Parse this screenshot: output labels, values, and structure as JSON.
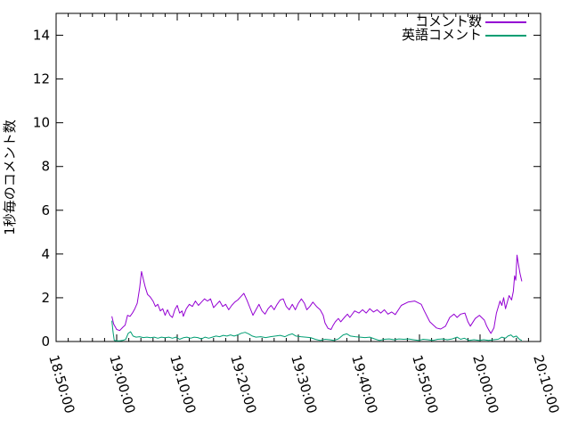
{
  "chart_data": {
    "type": "line",
    "title": "",
    "xlabel": "",
    "ylabel": "1秒毎のコメント数",
    "grid": false,
    "legend_position": "top-right-inside",
    "x_axis": {
      "tick_labels": [
        "18:50:00",
        "19:00:00",
        "19:10:00",
        "19:20:00",
        "19:30:00",
        "19:40:00",
        "19:50:00",
        "20:00:00",
        "20:10:00"
      ],
      "major_tick_interval_minutes": 10,
      "minor_tick_interval_minutes": 2,
      "range_minutes": [
        0,
        80
      ]
    },
    "y_axis": {
      "tick_labels": [
        "0",
        "2",
        "4",
        "6",
        "8",
        "10",
        "12",
        "14"
      ],
      "tick_step": 2,
      "range": [
        0,
        15
      ]
    },
    "series": [
      {
        "name": "コメント数",
        "color": "#9400d3",
        "points": [
          [
            9.2,
            1.15
          ],
          [
            9.5,
            0.8
          ],
          [
            10.0,
            0.55
          ],
          [
            10.5,
            0.5
          ],
          [
            11.0,
            0.65
          ],
          [
            11.4,
            0.75
          ],
          [
            11.8,
            1.2
          ],
          [
            12.2,
            1.15
          ],
          [
            12.6,
            1.3
          ],
          [
            13.0,
            1.5
          ],
          [
            13.4,
            1.75
          ],
          [
            13.8,
            2.45
          ],
          [
            14.1,
            3.2
          ],
          [
            14.4,
            2.85
          ],
          [
            14.7,
            2.5
          ],
          [
            15.1,
            2.15
          ],
          [
            15.5,
            2.05
          ],
          [
            16.0,
            1.85
          ],
          [
            16.4,
            1.6
          ],
          [
            16.8,
            1.7
          ],
          [
            17.2,
            1.4
          ],
          [
            17.6,
            1.5
          ],
          [
            18.0,
            1.2
          ],
          [
            18.4,
            1.45
          ],
          [
            18.8,
            1.2
          ],
          [
            19.2,
            1.1
          ],
          [
            19.6,
            1.45
          ],
          [
            20.0,
            1.65
          ],
          [
            20.4,
            1.3
          ],
          [
            20.8,
            1.4
          ],
          [
            21.0,
            1.15
          ],
          [
            21.5,
            1.5
          ],
          [
            22.0,
            1.7
          ],
          [
            22.5,
            1.6
          ],
          [
            23.0,
            1.85
          ],
          [
            23.5,
            1.65
          ],
          [
            24.0,
            1.8
          ],
          [
            24.5,
            1.95
          ],
          [
            25.0,
            1.85
          ],
          [
            25.5,
            1.95
          ],
          [
            26.0,
            1.55
          ],
          [
            26.5,
            1.7
          ],
          [
            27.0,
            1.85
          ],
          [
            27.5,
            1.6
          ],
          [
            28.0,
            1.7
          ],
          [
            28.5,
            1.45
          ],
          [
            29.0,
            1.65
          ],
          [
            29.5,
            1.8
          ],
          [
            30.0,
            1.9
          ],
          [
            30.5,
            2.05
          ],
          [
            31.0,
            2.2
          ],
          [
            31.5,
            1.9
          ],
          [
            32.0,
            1.55
          ],
          [
            32.5,
            1.2
          ],
          [
            33.0,
            1.45
          ],
          [
            33.5,
            1.7
          ],
          [
            34.0,
            1.4
          ],
          [
            34.5,
            1.25
          ],
          [
            35.0,
            1.5
          ],
          [
            35.5,
            1.65
          ],
          [
            36.0,
            1.45
          ],
          [
            36.5,
            1.7
          ],
          [
            37.0,
            1.9
          ],
          [
            37.5,
            1.95
          ],
          [
            38.0,
            1.6
          ],
          [
            38.5,
            1.45
          ],
          [
            39.0,
            1.7
          ],
          [
            39.5,
            1.45
          ],
          [
            40.0,
            1.75
          ],
          [
            40.5,
            1.95
          ],
          [
            41.0,
            1.75
          ],
          [
            41.4,
            1.45
          ],
          [
            41.9,
            1.6
          ],
          [
            42.4,
            1.8
          ],
          [
            43.0,
            1.6
          ],
          [
            43.6,
            1.45
          ],
          [
            44.1,
            1.2
          ],
          [
            44.4,
            0.85
          ],
          [
            44.9,
            0.6
          ],
          [
            45.4,
            0.55
          ],
          [
            45.7,
            0.72
          ],
          [
            46.1,
            0.9
          ],
          [
            46.6,
            1.05
          ],
          [
            47.0,
            0.9
          ],
          [
            47.6,
            1.1
          ],
          [
            48.1,
            1.25
          ],
          [
            48.5,
            1.1
          ],
          [
            49.3,
            1.4
          ],
          [
            50.0,
            1.3
          ],
          [
            50.6,
            1.45
          ],
          [
            51.2,
            1.3
          ],
          [
            51.8,
            1.5
          ],
          [
            52.4,
            1.35
          ],
          [
            53.0,
            1.45
          ],
          [
            53.6,
            1.3
          ],
          [
            54.2,
            1.45
          ],
          [
            54.8,
            1.25
          ],
          [
            55.4,
            1.35
          ],
          [
            56.0,
            1.23
          ],
          [
            57.0,
            1.65
          ],
          [
            58.1,
            1.8
          ],
          [
            59.2,
            1.85
          ],
          [
            60.3,
            1.7
          ],
          [
            60.8,
            1.4
          ],
          [
            61.7,
            0.9
          ],
          [
            62.8,
            0.62
          ],
          [
            63.5,
            0.57
          ],
          [
            64.3,
            0.7
          ],
          [
            65.0,
            1.1
          ],
          [
            65.7,
            1.25
          ],
          [
            66.2,
            1.1
          ],
          [
            66.8,
            1.25
          ],
          [
            67.5,
            1.3
          ],
          [
            68.0,
            0.9
          ],
          [
            68.4,
            0.7
          ],
          [
            69.2,
            1.05
          ],
          [
            69.9,
            1.2
          ],
          [
            70.7,
            0.98
          ],
          [
            71.1,
            0.7
          ],
          [
            71.5,
            0.5
          ],
          [
            71.8,
            0.37
          ],
          [
            72.3,
            0.62
          ],
          [
            72.7,
            1.3
          ],
          [
            73.3,
            1.85
          ],
          [
            73.6,
            1.65
          ],
          [
            73.9,
            2.0
          ],
          [
            74.2,
            1.5
          ],
          [
            74.8,
            2.1
          ],
          [
            75.2,
            1.9
          ],
          [
            75.5,
            2.3
          ],
          [
            75.7,
            3.0
          ],
          [
            75.9,
            2.8
          ],
          [
            76.1,
            3.95
          ],
          [
            76.3,
            3.6
          ],
          [
            76.6,
            3.1
          ],
          [
            76.9,
            2.75
          ]
        ]
      },
      {
        "name": "英語コメント",
        "color": "#009e73",
        "points": [
          [
            9.2,
            0.95
          ],
          [
            9.4,
            0.45
          ],
          [
            9.6,
            0.05
          ],
          [
            10.0,
            0.03
          ],
          [
            10.5,
            0.03
          ],
          [
            11.0,
            0.05
          ],
          [
            11.5,
            0.1
          ],
          [
            11.9,
            0.37
          ],
          [
            12.3,
            0.45
          ],
          [
            12.7,
            0.25
          ],
          [
            13.2,
            0.2
          ],
          [
            13.8,
            0.22
          ],
          [
            14.4,
            0.18
          ],
          [
            15.0,
            0.2
          ],
          [
            15.6,
            0.17
          ],
          [
            16.2,
            0.2
          ],
          [
            16.8,
            0.15
          ],
          [
            17.4,
            0.2
          ],
          [
            18.0,
            0.17
          ],
          [
            18.6,
            0.2
          ],
          [
            19.2,
            0.15
          ],
          [
            19.8,
            0.2
          ],
          [
            20.4,
            0.1
          ],
          [
            21.0,
            0.17
          ],
          [
            21.6,
            0.2
          ],
          [
            22.2,
            0.15
          ],
          [
            22.8,
            0.2
          ],
          [
            23.4,
            0.18
          ],
          [
            24.0,
            0.12
          ],
          [
            24.6,
            0.2
          ],
          [
            25.2,
            0.15
          ],
          [
            25.8,
            0.2
          ],
          [
            26.4,
            0.25
          ],
          [
            27.0,
            0.22
          ],
          [
            27.6,
            0.28
          ],
          [
            28.2,
            0.25
          ],
          [
            28.8,
            0.3
          ],
          [
            29.4,
            0.25
          ],
          [
            30.0,
            0.3
          ],
          [
            30.6,
            0.38
          ],
          [
            31.2,
            0.42
          ],
          [
            31.8,
            0.35
          ],
          [
            32.4,
            0.25
          ],
          [
            33.0,
            0.2
          ],
          [
            33.8,
            0.22
          ],
          [
            34.6,
            0.18
          ],
          [
            35.4,
            0.22
          ],
          [
            36.2,
            0.25
          ],
          [
            37.0,
            0.28
          ],
          [
            37.8,
            0.22
          ],
          [
            38.4,
            0.3
          ],
          [
            39.0,
            0.35
          ],
          [
            39.6,
            0.25
          ],
          [
            40.4,
            0.22
          ],
          [
            41.2,
            0.2
          ],
          [
            42.0,
            0.18
          ],
          [
            42.8,
            0.1
          ],
          [
            43.6,
            0.05
          ],
          [
            44.4,
            0.1
          ],
          [
            45.2,
            0.08
          ],
          [
            45.8,
            0.05
          ],
          [
            46.6,
            0.12
          ],
          [
            47.4,
            0.3
          ],
          [
            48.0,
            0.35
          ],
          [
            48.6,
            0.25
          ],
          [
            49.4,
            0.22
          ],
          [
            50.2,
            0.2
          ],
          [
            51.0,
            0.18
          ],
          [
            51.8,
            0.2
          ],
          [
            52.6,
            0.12
          ],
          [
            53.4,
            0.05
          ],
          [
            54.2,
            0.1
          ],
          [
            55.0,
            0.12
          ],
          [
            55.8,
            0.08
          ],
          [
            56.6,
            0.12
          ],
          [
            57.4,
            0.1
          ],
          [
            58.2,
            0.12
          ],
          [
            59.0,
            0.08
          ],
          [
            59.8,
            0.05
          ],
          [
            60.6,
            0.1
          ],
          [
            61.4,
            0.08
          ],
          [
            62.2,
            0.05
          ],
          [
            63.0,
            0.1
          ],
          [
            63.8,
            0.12
          ],
          [
            64.6,
            0.08
          ],
          [
            65.4,
            0.12
          ],
          [
            66.2,
            0.2
          ],
          [
            66.8,
            0.1
          ],
          [
            67.4,
            0.15
          ],
          [
            68.2,
            0.05
          ],
          [
            69.0,
            0.08
          ],
          [
            69.8,
            0.05
          ],
          [
            70.6,
            0.08
          ],
          [
            71.4,
            0.05
          ],
          [
            72.2,
            0.08
          ],
          [
            73.0,
            0.1
          ],
          [
            73.6,
            0.2
          ],
          [
            74.2,
            0.15
          ],
          [
            74.6,
            0.25
          ],
          [
            75.1,
            0.3
          ],
          [
            75.5,
            0.2
          ],
          [
            76.0,
            0.25
          ],
          [
            76.5,
            0.1
          ],
          [
            76.9,
            0.05
          ]
        ]
      }
    ],
    "colors": {
      "background": "#ffffff",
      "axis": "#000000",
      "text": "#000000",
      "series1": "#9400d3",
      "series2": "#009e73"
    }
  }
}
